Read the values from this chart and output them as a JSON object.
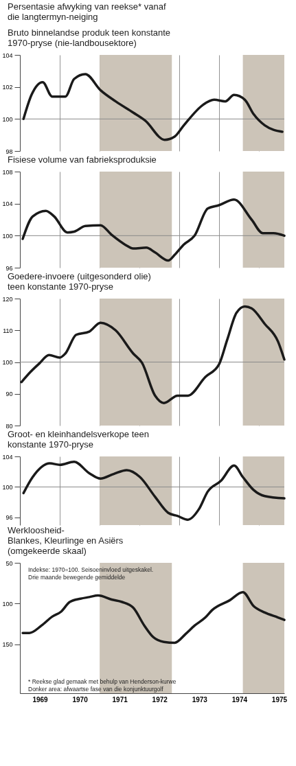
{
  "chart_data": [
    {
      "type": "line",
      "title": "Persentasie afwyking van reekse* vanaf\ndie langtermyn-neiging",
      "subtitle": "Bruto binnelandse produk teen konstante\n1970-pryse (nie-landbousektore)",
      "xlim": [
        1969,
        1975.63
      ],
      "xticks": [
        {
          "value": 1970,
          "label": null
        },
        {
          "value": 1971,
          "label": null
        },
        {
          "value": 1972,
          "label": null
        },
        {
          "value": 1973,
          "label": null
        },
        {
          "value": 1974,
          "label": null
        },
        {
          "value": 1975,
          "label": null
        }
      ],
      "ylim": [
        98,
        104
      ],
      "yticks": [
        98,
        100,
        102,
        104
      ],
      "grid": "x",
      "tick_labels": "y",
      "ref_lines": [
        {
          "axis": "y",
          "value": 100,
          "color": "#8a8a8a"
        }
      ],
      "bands": [
        {
          "axis": "x",
          "from": 1971.0,
          "to": 1972.81,
          "color": "#ccc4b8"
        },
        {
          "axis": "x",
          "from": 1974.59,
          "to": 1975.63,
          "color": "#ccc4b8"
        }
      ],
      "series": [
        {
          "color": "#1a1a1a",
          "x": [
            1969.09,
            1969.29,
            1969.57,
            1969.81,
            1970.14,
            1970.36,
            1970.64,
            1971.02,
            1971.4,
            1971.84,
            1972.14,
            1972.63,
            1972.88,
            1973.11,
            1973.6,
            1973.87,
            1974.15,
            1974.37,
            1974.64,
            1974.86,
            1975.14,
            1975.58
          ],
          "values": [
            100.0,
            101.5,
            102.3,
            101.4,
            101.4,
            102.5,
            102.8,
            101.8,
            101.1,
            100.4,
            99.9,
            98.7,
            98.9,
            99.6,
            100.9,
            101.2,
            101.1,
            101.5,
            101.2,
            100.3,
            99.6,
            99.2
          ]
        }
      ]
    },
    {
      "type": "line",
      "title": "Fisiese volume van  fabrieksproduksie",
      "xlim": [
        1969,
        1975.63
      ],
      "xticks": [
        {
          "value": 1970,
          "label": null
        },
        {
          "value": 1971,
          "label": null
        },
        {
          "value": 1972,
          "label": null
        },
        {
          "value": 1973,
          "label": null
        },
        {
          "value": 1974,
          "label": null
        },
        {
          "value": 1975,
          "label": null
        }
      ],
      "ylim": [
        96,
        108
      ],
      "yticks": [
        96,
        100,
        104,
        108
      ],
      "grid": "x",
      "tick_labels": "y",
      "ref_lines": [
        {
          "axis": "y",
          "value": 100,
          "color": "#8a8a8a"
        }
      ],
      "bands": [
        {
          "axis": "x",
          "from": 1971.0,
          "to": 1972.81,
          "color": "#ccc4b8"
        },
        {
          "axis": "x",
          "from": 1974.59,
          "to": 1975.63,
          "color": "#ccc4b8"
        }
      ],
      "series": [
        {
          "color": "#1a1a1a",
          "x": [
            1969.07,
            1969.32,
            1969.65,
            1969.86,
            1970.19,
            1970.36,
            1970.64,
            1971.02,
            1971.3,
            1971.63,
            1971.84,
            1972.17,
            1972.39,
            1972.72,
            1972.88,
            1973.11,
            1973.38,
            1973.71,
            1973.99,
            1974.37,
            1974.81,
            1975.09,
            1975.36,
            1975.63
          ],
          "values": [
            99.6,
            102.4,
            103.1,
            102.4,
            100.4,
            100.5,
            101.2,
            101.3,
            100.1,
            98.9,
            98.4,
            98.5,
            97.9,
            96.9,
            97.6,
            98.9,
            100.0,
            103.4,
            103.8,
            104.5,
            102.0,
            100.3,
            100.3,
            100.0
          ]
        }
      ]
    },
    {
      "type": "line",
      "title": "Goedere-invoere (uitgesonderd olie)\nteen konstante 1970-pryse",
      "xlim": [
        1969,
        1975.63
      ],
      "xticks": [
        {
          "value": 1970,
          "label": null
        },
        {
          "value": 1971,
          "label": null
        },
        {
          "value": 1972,
          "label": null
        },
        {
          "value": 1973,
          "label": null
        },
        {
          "value": 1974,
          "label": null
        },
        {
          "value": 1975,
          "label": null
        }
      ],
      "ylim": [
        80,
        120
      ],
      "yticks": [
        80,
        90,
        100,
        110,
        120
      ],
      "grid": "x",
      "tick_labels": "y",
      "ref_lines": [
        {
          "axis": "y",
          "value": 100,
          "color": "#8a8a8a"
        }
      ],
      "bands": [
        {
          "axis": "x",
          "from": 1971.0,
          "to": 1972.81,
          "color": "#ccc4b8"
        },
        {
          "axis": "x",
          "from": 1974.59,
          "to": 1975.63,
          "color": "#ccc4b8"
        }
      ],
      "series": [
        {
          "color": "#1a1a1a",
          "x": [
            1969.04,
            1969.25,
            1969.49,
            1969.73,
            1970.0,
            1970.14,
            1970.41,
            1970.74,
            1971.02,
            1971.4,
            1971.84,
            1972.06,
            1972.39,
            1972.61,
            1972.95,
            1973.21,
            1973.65,
            1973.99,
            1974.2,
            1974.43,
            1974.64,
            1974.81,
            1975.14,
            1975.47,
            1975.63
          ],
          "values": [
            93.7,
            96.7,
            99.6,
            102.2,
            101.4,
            102.7,
            108.6,
            109.6,
            112.4,
            110.0,
            102.7,
            99.8,
            89.4,
            87.1,
            89.4,
            89.4,
            95.3,
            99.2,
            107.1,
            115.5,
            117.5,
            116.9,
            112.0,
            106.5,
            100.8
          ]
        }
      ]
    },
    {
      "type": "line",
      "title": "Groot- en kleinhandelsverkope teen\nkonstante 1970-pryse",
      "xlim": [
        1969,
        1975.63
      ],
      "xticks": [
        {
          "value": 1970,
          "label": null
        },
        {
          "value": 1971,
          "label": null
        },
        {
          "value": 1972,
          "label": null
        },
        {
          "value": 1973,
          "label": null
        },
        {
          "value": 1974,
          "label": null
        },
        {
          "value": 1975,
          "label": null
        }
      ],
      "ylim": [
        95,
        104
      ],
      "yticks": [
        96,
        100,
        104
      ],
      "grid": "x",
      "tick_labels": "y",
      "ref_lines": [
        {
          "axis": "y",
          "value": 100,
          "color": "#8a8a8a"
        }
      ],
      "bands": [
        {
          "axis": "x",
          "from": 1971.0,
          "to": 1972.81,
          "color": "#ccc4b8"
        },
        {
          "axis": "x",
          "from": 1974.59,
          "to": 1975.63,
          "color": "#ccc4b8"
        }
      ],
      "series": [
        {
          "color": "#1a1a1a",
          "x": [
            1969.09,
            1969.32,
            1969.75,
            1970.0,
            1970.36,
            1970.74,
            1971.02,
            1971.35,
            1971.68,
            1972.01,
            1972.39,
            1972.72,
            1972.95,
            1973.21,
            1973.49,
            1973.71,
            1974.04,
            1974.37,
            1974.59,
            1974.86,
            1975.14,
            1975.63
          ],
          "values": [
            99.2,
            101.3,
            103.1,
            102.9,
            103.3,
            101.8,
            101.1,
            101.7,
            102.2,
            101.3,
            98.7,
            96.6,
            96.2,
            95.7,
            97.1,
            99.4,
            100.8,
            102.8,
            101.3,
            99.6,
            98.8,
            98.5
          ]
        }
      ]
    },
    {
      "type": "line",
      "title": "Werkloosheid-\n    Blankes, Kleurlinge en Asiërs\n    (omgekeerde skaal)",
      "xlim": [
        1969,
        1975.63
      ],
      "xticks": [
        {
          "value": 1969.5,
          "label": "1969"
        },
        {
          "value": 1970.5,
          "label": "1970"
        },
        {
          "value": 1971.5,
          "label": "1971"
        },
        {
          "value": 1972.5,
          "label": "1972"
        },
        {
          "value": 1973.5,
          "label": "1973"
        },
        {
          "value": 1974.5,
          "label": "1974"
        },
        {
          "value": 1975.5,
          "label": "1975"
        }
      ],
      "ylim": [
        210,
        50
      ],
      "yticks": [
        50,
        100,
        150
      ],
      "bands": [
        {
          "axis": "x",
          "from": 1971.0,
          "to": 1972.81,
          "color": "#ccc4b8"
        },
        {
          "axis": "x",
          "from": 1974.59,
          "to": 1975.63,
          "color": "#ccc4b8"
        }
      ],
      "annotations": [
        "Indekse: 1970=100. Seisoeninvloed uitgeskakel.\nDrie maande bewegende gemiddelde",
        "* Reekse glad gemaak met behulp van Henderson-kurwe\nDonker area: afwaartse fase van die konjunktuurgolf"
      ],
      "series": [
        {
          "color": "#1a1a1a",
          "x": [
            1969.07,
            1969.24,
            1969.54,
            1969.81,
            1970.03,
            1970.25,
            1970.52,
            1970.74,
            1970.96,
            1971.3,
            1971.56,
            1971.84,
            1972.12,
            1972.34,
            1972.61,
            1972.88,
            1973.16,
            1973.38,
            1973.65,
            1973.82,
            1974.26,
            1974.59,
            1974.86,
            1975.14,
            1975.47,
            1975.63
          ],
          "values": [
            136,
            136,
            127,
            116,
            110,
            98,
            94,
            92,
            90,
            95,
            98,
            105,
            127,
            141,
            147,
            148,
            137,
            127,
            117,
            108,
            96,
            86,
            103,
            111,
            117,
            120
          ]
        }
      ]
    }
  ]
}
